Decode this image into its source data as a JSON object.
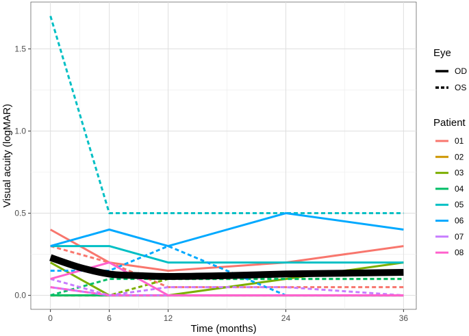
{
  "chart_data": {
    "type": "line",
    "xlabel": "Time (months)",
    "ylabel": "Visual acuity (logMAR)",
    "x_ticks": [
      "0",
      "6",
      "12",
      "24",
      "36"
    ],
    "y_ticks": [
      "0.0",
      "0.5",
      "1.0",
      "1.5"
    ],
    "xlim": [
      -2,
      37.3
    ],
    "ylim": [
      -0.085,
      1.785
    ],
    "grid": true,
    "x": [
      0,
      6,
      12,
      24,
      36
    ],
    "legend": {
      "position": "right",
      "eye_title": "Eye",
      "eye_entries": [
        {
          "label": "OD",
          "dash": "solid"
        },
        {
          "label": "OS",
          "dash": "dashed"
        }
      ],
      "patient_title": "Patient",
      "patient_entries": [
        {
          "label": "01",
          "color": "#F8766D"
        },
        {
          "label": "02",
          "color": "#CD9600"
        },
        {
          "label": "03",
          "color": "#7CAE00"
        },
        {
          "label": "04",
          "color": "#00BE67"
        },
        {
          "label": "05",
          "color": "#00BFC4"
        },
        {
          "label": "06",
          "color": "#00A9FF"
        },
        {
          "label": "07",
          "color": "#C77CFF"
        },
        {
          "label": "08",
          "color": "#FF61CC"
        }
      ]
    },
    "series": [
      {
        "patient": "01",
        "eye": "OD",
        "color": "#F8766D",
        "values": [
          0.4,
          0.2,
          0.15,
          0.2,
          0.3
        ]
      },
      {
        "patient": "01",
        "eye": "OS",
        "color": "#F8766D",
        "values": [
          0.3,
          0.2,
          0.05,
          0.05,
          0.05
        ]
      },
      {
        "patient": "02",
        "eye": "OD",
        "color": "#CD9600",
        "values": [
          0.0,
          0.0,
          0.0,
          0.0,
          0.0
        ]
      },
      {
        "patient": "02",
        "eye": "OS",
        "color": "#CD9600",
        "values": [
          0.0,
          0.0,
          0.0,
          0.0,
          0.0
        ]
      },
      {
        "patient": "03",
        "eye": "OD",
        "color": "#7CAE00",
        "values": [
          0.2,
          0.0,
          0.0,
          0.1,
          0.2
        ]
      },
      {
        "patient": "03",
        "eye": "OS",
        "color": "#7CAE00",
        "values": [
          0.0,
          0.0,
          0.1,
          0.1,
          0.1
        ]
      },
      {
        "patient": "04",
        "eye": "OD",
        "color": "#00BE67",
        "values": [
          0.0,
          0.0,
          0.0,
          0.0,
          0.0
        ]
      },
      {
        "patient": "04",
        "eye": "OS",
        "color": "#00BE67",
        "values": [
          0.0,
          0.1,
          0.1,
          0.1,
          0.1
        ]
      },
      {
        "patient": "05",
        "eye": "OD",
        "color": "#00BFC4",
        "values": [
          0.3,
          0.3,
          0.2,
          0.2,
          0.2
        ]
      },
      {
        "patient": "05",
        "eye": "OS",
        "color": "#00BFC4",
        "values": [
          1.7,
          0.5,
          0.5,
          0.5,
          0.5
        ]
      },
      {
        "patient": "06",
        "eye": "OD",
        "color": "#00A9FF",
        "values": [
          0.3,
          0.4,
          0.3,
          0.5,
          0.4
        ]
      },
      {
        "patient": "06",
        "eye": "OS",
        "color": "#00A9FF",
        "values": [
          0.15,
          0.15,
          0.3,
          0.0,
          0.0
        ]
      },
      {
        "patient": "07",
        "eye": "OD",
        "color": "#C77CFF",
        "values": [
          0.05,
          0.0,
          0.0,
          0.0,
          0.0
        ]
      },
      {
        "patient": "07",
        "eye": "OS",
        "color": "#C77CFF",
        "values": [
          0.1,
          0.0,
          0.05,
          0.05,
          0.0
        ]
      },
      {
        "patient": "08",
        "eye": "OD",
        "color": "#FF61CC",
        "values": [
          0.1,
          0.2,
          0.0,
          0.0,
          0.0
        ]
      },
      {
        "patient": "08",
        "eye": "OS",
        "color": "#FF61CC",
        "values": [
          0.05,
          0.0,
          0.0,
          0.0,
          0.0
        ]
      }
    ],
    "mean_trend": {
      "color": "#000000",
      "x": [
        0,
        3,
        6,
        9,
        12,
        18,
        24,
        30,
        36
      ],
      "values": [
        0.23,
        0.17,
        0.13,
        0.12,
        0.115,
        0.12,
        0.13,
        0.135,
        0.14
      ]
    }
  }
}
